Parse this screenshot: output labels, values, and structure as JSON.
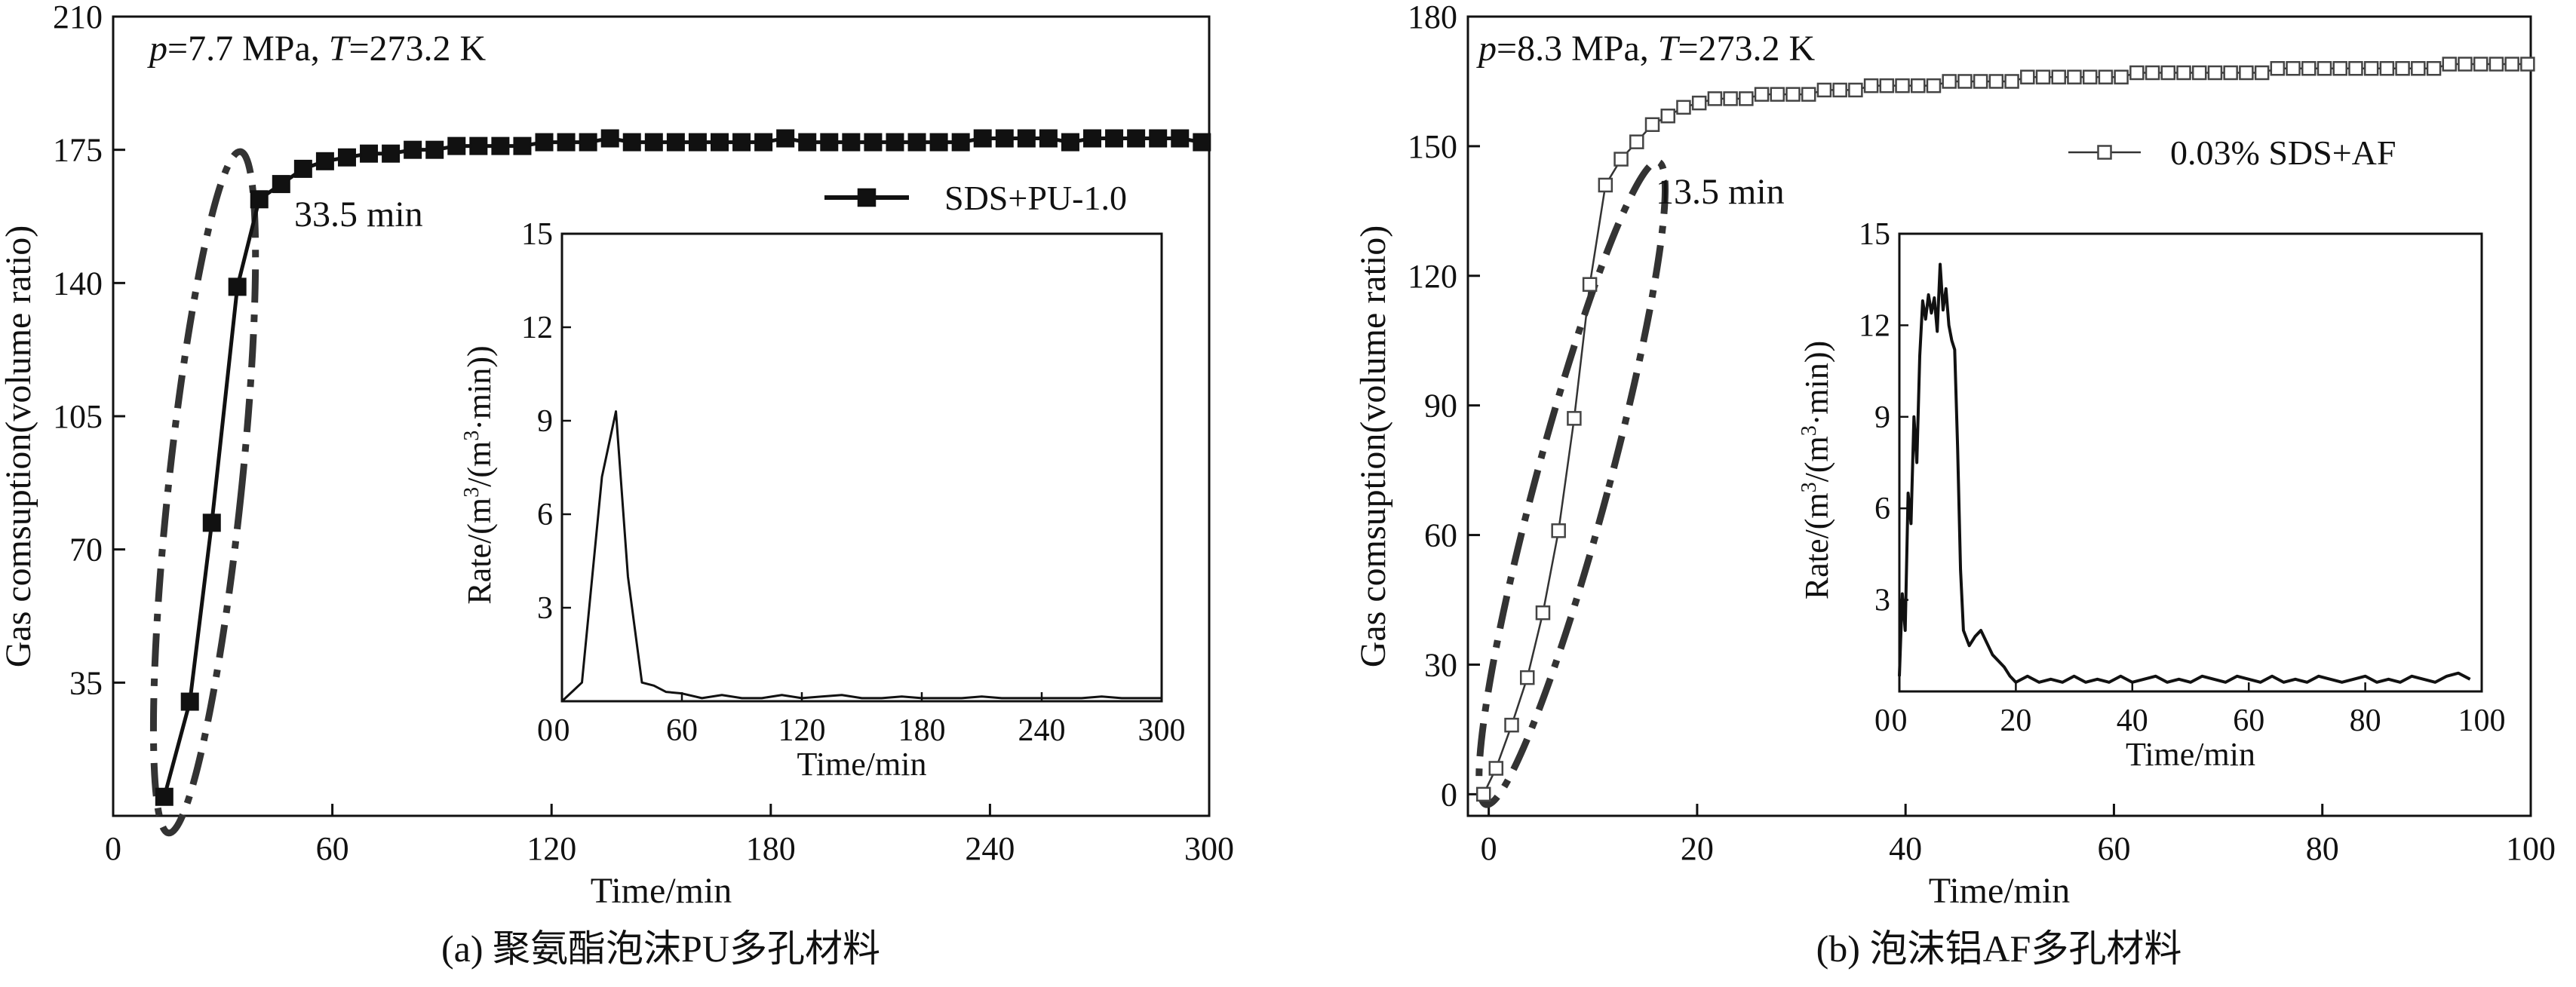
{
  "chart_data": [
    {
      "type": "line",
      "panel": "a",
      "caption": "(a) 聚氨酯泡沫PU多孔材料",
      "condition": {
        "p_sym": "p",
        "p_val": "=7.7 MPa, ",
        "t_sym": "T",
        "t_val": "=273.2 K"
      },
      "xlabel": "Time/min",
      "ylabel": "Gas comsuption(volume ratio)",
      "xlim": [
        0,
        300
      ],
      "ylim": [
        0,
        210
      ],
      "xticks": [
        0,
        60,
        120,
        180,
        240,
        300
      ],
      "yticks": [
        35,
        70,
        105,
        140,
        175,
        210
      ],
      "ytick_labels": [
        "35",
        "70",
        "105",
        "140",
        "175",
        "210"
      ],
      "xtick_labels": [
        "0",
        "60",
        "120",
        "180",
        "240",
        "300"
      ],
      "series": [
        {
          "name": "SDS+PU-1.0",
          "marker": "filled-square",
          "x": [
            14,
            21,
            27,
            34,
            40,
            46,
            52,
            58,
            64,
            70,
            76,
            82,
            88,
            94,
            100,
            106,
            112,
            118,
            124,
            130,
            136,
            142,
            148,
            154,
            160,
            166,
            172,
            178,
            184,
            190,
            196,
            202,
            208,
            214,
            220,
            226,
            232,
            238,
            244,
            250,
            256,
            262,
            268,
            274,
            280,
            286,
            292,
            298
          ],
          "y": [
            5,
            30,
            77,
            139,
            162,
            166,
            170,
            172,
            173,
            174,
            174,
            175,
            175,
            176,
            176,
            176,
            176,
            177,
            177,
            177,
            178,
            177,
            177,
            177,
            177,
            177,
            177,
            177,
            178,
            177,
            177,
            177,
            177,
            177,
            177,
            177,
            177,
            178,
            178,
            178,
            178,
            177,
            178,
            178,
            178,
            178,
            178,
            177
          ]
        }
      ],
      "annotation": "33.5 min",
      "ellipse": {
        "cx": 25,
        "cy": 85,
        "rx": 10,
        "ry": 90,
        "angle_deg": 6
      },
      "inset": {
        "xlabel": "Time/min",
        "ylabel_prefix": "Rate/(m",
        "ylabel_mid": "/(m",
        "ylabel_suffix": "·min))",
        "ylabel_sup": "3",
        "xlim": [
          0,
          300
        ],
        "ylim": [
          0,
          15
        ],
        "xticks": [
          0,
          60,
          120,
          180,
          240,
          300
        ],
        "yticks": [
          3,
          6,
          9,
          12,
          15
        ],
        "xtick_labels": [
          "0",
          "60",
          "120",
          "180",
          "240",
          "300"
        ],
        "ytick_labels": [
          "3",
          "6",
          "9",
          "12",
          "15"
        ],
        "x": [
          0,
          10,
          20,
          27,
          33,
          40,
          46,
          52,
          60,
          70,
          80,
          90,
          100,
          110,
          120,
          130,
          140,
          150,
          160,
          170,
          180,
          190,
          200,
          210,
          220,
          230,
          240,
          250,
          260,
          270,
          280,
          290,
          300
        ],
        "y": [
          0.0,
          0.6,
          7.2,
          9.3,
          4.0,
          0.6,
          0.5,
          0.3,
          0.25,
          0.1,
          0.2,
          0.1,
          0.1,
          0.2,
          0.1,
          0.15,
          0.2,
          0.1,
          0.1,
          0.15,
          0.1,
          0.1,
          0.1,
          0.15,
          0.1,
          0.1,
          0.1,
          0.1,
          0.1,
          0.15,
          0.1,
          0.1,
          0.1
        ]
      }
    },
    {
      "type": "line",
      "panel": "b",
      "caption": "(b) 泡沫铝AF多孔材料",
      "condition": {
        "p_sym": "p",
        "p_val": "=8.3 MPa, ",
        "t_sym": "T",
        "t_val": "=273.2 K"
      },
      "xlabel": "Time/min",
      "ylabel": "Gas comsuption(volume ratio)",
      "xlim": [
        -2,
        100
      ],
      "ylim": [
        -5,
        180
      ],
      "xticks": [
        0,
        20,
        40,
        60,
        80,
        100
      ],
      "yticks": [
        0,
        30,
        60,
        90,
        120,
        150,
        180
      ],
      "ytick_labels": [
        "0",
        "30",
        "60",
        "90",
        "120",
        "150",
        "180"
      ],
      "xtick_labels": [
        "0",
        "20",
        "40",
        "60",
        "80",
        "100"
      ],
      "series": [
        {
          "name": "0.03% SDS+AF",
          "marker": "open-square",
          "x": [
            -0.5,
            0.7,
            2.2,
            3.7,
            5.2,
            6.7,
            8.2,
            9.7,
            11.2,
            12.7,
            14.2,
            15.7,
            17.2,
            18.7,
            20.2,
            21.7,
            23.2,
            24.7,
            26.2,
            27.7,
            29.2,
            30.7,
            32.2,
            33.7,
            35.2,
            36.7,
            38.2,
            39.7,
            41.2,
            42.7,
            44.2,
            45.7,
            47.2,
            48.7,
            50.2,
            51.7,
            53.2,
            54.7,
            56.2,
            57.7,
            59.2,
            60.7,
            62.2,
            63.7,
            65.2,
            66.7,
            68.2,
            69.7,
            71.2,
            72.7,
            74.2,
            75.7,
            77.2,
            78.7,
            80.2,
            81.7,
            83.2,
            84.7,
            86.2,
            87.7,
            89.2,
            90.7,
            92.2,
            93.7,
            95.2,
            96.7,
            98.2,
            99.7
          ],
          "y": [
            0,
            6,
            16,
            27,
            42,
            61,
            87,
            118,
            141,
            147,
            151,
            155,
            157,
            159,
            160,
            161,
            161,
            161,
            162,
            162,
            162,
            162,
            163,
            163,
            163,
            164,
            164,
            164,
            164,
            164,
            165,
            165,
            165,
            165,
            165,
            166,
            166,
            166,
            166,
            166,
            166,
            166,
            167,
            167,
            167,
            167,
            167,
            167,
            167,
            167,
            167,
            168,
            168,
            168,
            168,
            168,
            168,
            168,
            168,
            168,
            168,
            168,
            169,
            169,
            169,
            169,
            169,
            169
          ]
        }
      ],
      "annotation": "13.5 min",
      "ellipse": {
        "cx": 8,
        "cy": 72,
        "rx": 3.5,
        "ry": 77,
        "angle_deg": 15
      },
      "inset": {
        "xlabel": "Time/min",
        "ylabel_prefix": "Rate/(m",
        "ylabel_mid": "/(m",
        "ylabel_suffix": "·min))",
        "ylabel_sup": "3",
        "xlim": [
          0,
          100
        ],
        "ylim": [
          0,
          15
        ],
        "xticks": [
          0,
          20,
          40,
          60,
          80,
          100
        ],
        "yticks": [
          3,
          6,
          9,
          12,
          15
        ],
        "xtick_labels": [
          "0",
          "20",
          "40",
          "60",
          "80",
          "100"
        ],
        "ytick_labels": [
          "3",
          "6",
          "9",
          "12",
          "15"
        ],
        "x": [
          0,
          0.5,
          1,
          1.5,
          2,
          2.5,
          3,
          3.5,
          4,
          4.5,
          5,
          5.5,
          6,
          6.5,
          7,
          7.5,
          8,
          8.5,
          9,
          9.5,
          10,
          10.5,
          11,
          12,
          13,
          14,
          15,
          16,
          17,
          18,
          19,
          20,
          22,
          24,
          26,
          28,
          30,
          32,
          34,
          36,
          38,
          40,
          42,
          44,
          46,
          48,
          50,
          52,
          54,
          56,
          58,
          60,
          62,
          64,
          66,
          68,
          70,
          72,
          74,
          76,
          78,
          80,
          82,
          84,
          86,
          88,
          90,
          92,
          94,
          96,
          98
        ],
        "y": [
          0.5,
          3.2,
          2.0,
          6.5,
          5.5,
          9.0,
          7.5,
          11.0,
          12.8,
          12.2,
          13.0,
          12.4,
          12.9,
          11.8,
          14.0,
          12.5,
          13.2,
          12.0,
          11.5,
          11.2,
          8.0,
          4.0,
          2.0,
          1.5,
          1.8,
          2.0,
          1.6,
          1.2,
          1.0,
          0.8,
          0.5,
          0.3,
          0.5,
          0.3,
          0.4,
          0.3,
          0.5,
          0.3,
          0.4,
          0.3,
          0.5,
          0.3,
          0.4,
          0.5,
          0.3,
          0.4,
          0.3,
          0.5,
          0.4,
          0.3,
          0.5,
          0.4,
          0.3,
          0.5,
          0.3,
          0.4,
          0.3,
          0.5,
          0.4,
          0.3,
          0.4,
          0.5,
          0.3,
          0.4,
          0.3,
          0.5,
          0.4,
          0.3,
          0.5,
          0.6,
          0.4
        ]
      }
    }
  ]
}
